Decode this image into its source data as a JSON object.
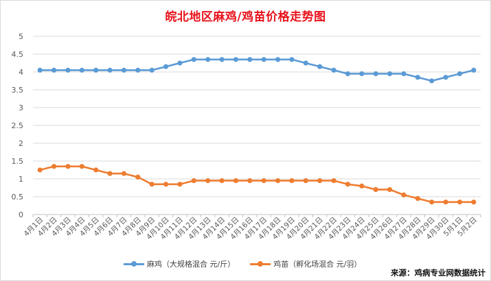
{
  "chart_data": {
    "type": "line",
    "title": "皖北地区麻鸡/鸡苗价格走势图",
    "source": "来源：鸡病专业网数据统计",
    "categories": [
      "4月1日",
      "4月2日",
      "4月3日",
      "4月4日",
      "4月5日",
      "4月6日",
      "4月7日",
      "4月8日",
      "4月9日",
      "4月10日",
      "4月11日",
      "4月12日",
      "4月13日",
      "4月14日",
      "4月15日",
      "4月16日",
      "4月17日",
      "4月18日",
      "4月19日",
      "4月20日",
      "4月21日",
      "4月22日",
      "4月23日",
      "4月24日",
      "4月25日",
      "4月26日",
      "4月27日",
      "4月28日",
      "4月29日",
      "4月30日",
      "5月1日",
      "5月2日"
    ],
    "ylim": [
      0,
      5
    ],
    "yticks": [
      "0",
      "0.5",
      "1",
      "1.5",
      "2",
      "2.5",
      "3",
      "3.5",
      "4",
      "4.5",
      "5"
    ],
    "grid": true,
    "legend_position": "bottom",
    "series": [
      {
        "name": "麻鸡（大规格混合 元/斤）",
        "color": "#5b9bd5",
        "values": [
          4.05,
          4.05,
          4.05,
          4.05,
          4.05,
          4.05,
          4.05,
          4.05,
          4.05,
          4.15,
          4.25,
          4.35,
          4.35,
          4.35,
          4.35,
          4.35,
          4.35,
          4.35,
          4.35,
          4.25,
          4.15,
          4.05,
          3.95,
          3.95,
          3.95,
          3.95,
          3.95,
          3.85,
          3.75,
          3.85,
          3.95,
          4.05
        ]
      },
      {
        "name": "鸡苗（孵化场混合 元/羽）",
        "color": "#ed7d31",
        "values": [
          1.25,
          1.35,
          1.35,
          1.35,
          1.25,
          1.15,
          1.15,
          1.05,
          0.85,
          0.85,
          0.85,
          0.95,
          0.95,
          0.95,
          0.95,
          0.95,
          0.95,
          0.95,
          0.95,
          0.95,
          0.95,
          0.95,
          0.85,
          0.8,
          0.7,
          0.7,
          0.55,
          0.45,
          0.35,
          0.35,
          0.35,
          0.35
        ]
      }
    ]
  }
}
